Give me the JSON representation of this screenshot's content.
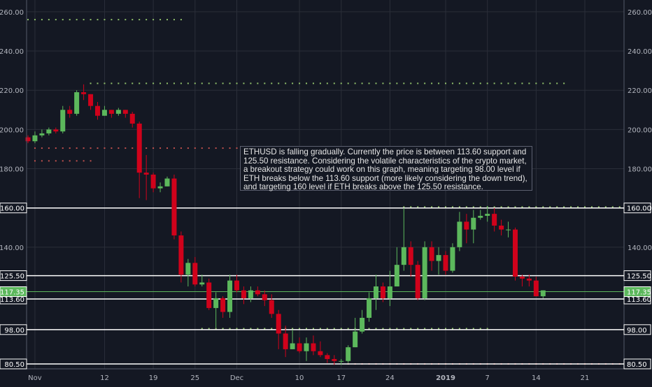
{
  "chart_data": {
    "type": "candlestick",
    "symbol": "ETHUSD",
    "colors": {
      "background": "#141823",
      "up": "#5cb85c",
      "down": "#d0021b",
      "level_line": "#ffffff",
      "current_price": "#5cb85c",
      "dot_green": "#8fbf6a",
      "dot_red": "#c0504d",
      "grid": "#2a2e39"
    },
    "y_axis": {
      "min": 78,
      "max": 266,
      "ticks": [
        "260.00",
        "240.00",
        "220.00",
        "200.00",
        "180.00",
        "160.00",
        "140.00"
      ]
    },
    "x_axis": {
      "tick_labels": [
        "Nov",
        "12",
        "19",
        "25",
        "Dec",
        "10",
        "17",
        "24",
        "2019",
        "7",
        "14",
        "21"
      ],
      "tick_index": [
        1,
        11,
        18,
        24,
        30,
        39,
        45,
        52,
        60,
        66,
        73,
        80
      ]
    },
    "candles": [
      [
        196,
        194,
        197,
        193
      ],
      [
        194,
        197,
        199,
        193
      ],
      [
        197,
        198,
        200,
        196
      ],
      [
        198,
        200,
        201,
        197
      ],
      [
        200,
        199,
        201,
        198
      ],
      [
        199,
        210,
        212,
        198
      ],
      [
        210,
        208,
        212,
        206
      ],
      [
        208,
        219,
        220,
        207
      ],
      [
        219,
        218,
        223,
        215
      ],
      [
        218,
        212,
        218,
        210
      ],
      [
        212,
        207,
        214,
        205
      ],
      [
        207,
        210,
        212,
        207
      ],
      [
        210,
        208,
        210,
        206
      ],
      [
        208,
        210,
        211,
        207
      ],
      [
        210,
        208,
        210,
        206
      ],
      [
        208,
        203,
        209,
        201
      ],
      [
        203,
        178,
        204,
        165
      ],
      [
        178,
        177,
        187,
        164
      ],
      [
        177,
        170,
        178,
        168
      ],
      [
        170,
        171,
        173,
        168
      ],
      [
        171,
        175,
        176,
        171
      ],
      [
        175,
        146,
        177,
        144
      ],
      [
        146,
        126,
        148,
        122
      ],
      [
        126,
        132,
        134,
        120
      ],
      [
        132,
        121,
        135,
        120
      ],
      [
        121,
        122,
        126,
        120
      ],
      [
        122,
        109,
        124,
        108
      ],
      [
        109,
        114,
        117,
        99
      ],
      [
        114,
        107,
        115,
        104
      ],
      [
        107,
        123,
        126,
        104
      ],
      [
        123,
        118,
        126,
        117
      ],
      [
        118,
        114,
        120,
        111
      ],
      [
        114,
        118,
        120,
        112
      ],
      [
        118,
        116,
        120,
        115
      ],
      [
        116,
        113,
        118,
        110
      ],
      [
        113,
        106,
        116,
        104
      ],
      [
        106,
        96,
        108,
        88
      ],
      [
        96,
        88,
        100,
        84
      ],
      [
        88,
        91,
        98,
        88
      ],
      [
        91,
        87,
        94,
        86
      ],
      [
        87,
        91,
        94,
        82
      ],
      [
        91,
        87,
        95,
        85
      ],
      [
        87,
        85,
        92,
        84
      ],
      [
        85,
        83,
        86,
        81
      ],
      [
        83,
        82,
        85,
        80
      ],
      [
        82,
        82,
        83,
        80
      ],
      [
        82,
        89,
        90,
        81
      ],
      [
        89,
        97,
        104,
        89
      ],
      [
        97,
        104,
        108,
        96
      ],
      [
        104,
        114,
        117,
        102
      ],
      [
        114,
        120,
        126,
        108
      ],
      [
        120,
        114,
        122,
        112
      ],
      [
        114,
        120,
        128,
        110
      ],
      [
        120,
        131,
        140,
        120
      ],
      [
        131,
        140,
        160,
        128
      ],
      [
        140,
        131,
        143,
        125
      ],
      [
        131,
        114,
        133,
        113
      ],
      [
        114,
        140,
        143,
        113
      ],
      [
        140,
        133,
        143,
        128
      ],
      [
        133,
        136,
        140,
        126
      ],
      [
        136,
        128,
        138,
        126
      ],
      [
        128,
        140,
        142,
        127
      ],
      [
        140,
        153,
        158,
        138
      ],
      [
        153,
        149,
        157,
        142
      ],
      [
        149,
        155,
        159,
        142
      ],
      [
        155,
        156,
        159,
        154
      ],
      [
        156,
        157,
        161,
        153
      ],
      [
        157,
        151,
        160,
        148
      ],
      [
        151,
        149,
        154,
        146
      ],
      [
        149,
        149,
        153,
        145
      ],
      [
        149,
        125,
        150,
        123
      ],
      [
        125,
        124,
        126,
        120
      ],
      [
        124,
        123,
        126,
        120
      ],
      [
        123,
        115,
        125,
        115
      ],
      [
        115,
        118,
        118,
        114
      ]
    ],
    "levels": [
      {
        "value": 160.0,
        "label": "160.00"
      },
      {
        "value": 125.5,
        "label": "125.50"
      },
      {
        "value": 113.6,
        "label": "113.60"
      },
      {
        "value": 98.0,
        "label": "98.00"
      },
      {
        "value": 80.5,
        "label": "80.50"
      }
    ],
    "current_price": {
      "value": 117.35,
      "label": "117.35"
    },
    "dotted_lines": [
      {
        "value": 256.0,
        "color": "green",
        "from": 0,
        "to": 22
      },
      {
        "value": 223.5,
        "color": "green",
        "from": 9,
        "to": 77
      },
      {
        "value": 190.5,
        "color": "red",
        "from": 1,
        "to": 45
      },
      {
        "value": 184.0,
        "color": "red",
        "from": 1,
        "to": 9
      },
      {
        "value": 160.5,
        "color": "green",
        "from": 54,
        "to": 90
      },
      {
        "value": 98.5,
        "color": "green",
        "from": 25,
        "to": 66
      },
      {
        "value": 80.5,
        "color": "red",
        "from": 46,
        "to": 93
      }
    ],
    "annotation": "ETHUSD is falling gradually. Currently the price is between 113.60 support and 125.50 resistance. Considering the volatile  characteristics of the crypto market,  a breakout strategy could work on this graph, meaning targeting 98.00 level if ETH breaks below the 113.60 support (more likely considering the down trend), and targeting 160 level if ETH breaks above the 125.50 resistance."
  }
}
